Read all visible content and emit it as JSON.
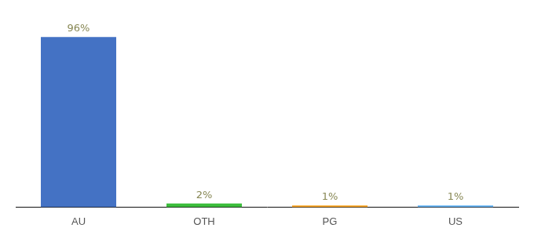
{
  "chart_data": {
    "type": "bar",
    "categories": [
      "AU",
      "OTH",
      "PG",
      "US"
    ],
    "values": [
      96,
      2,
      1,
      1
    ],
    "value_labels": [
      "96%",
      "2%",
      "1%",
      "1%"
    ],
    "colors": [
      "#4472C4",
      "#3DBE3D",
      "#FFA726",
      "#64B5F6"
    ],
    "ylim": [
      0,
      108
    ],
    "grid": false,
    "data_labels": true,
    "tick_labels": "x"
  }
}
